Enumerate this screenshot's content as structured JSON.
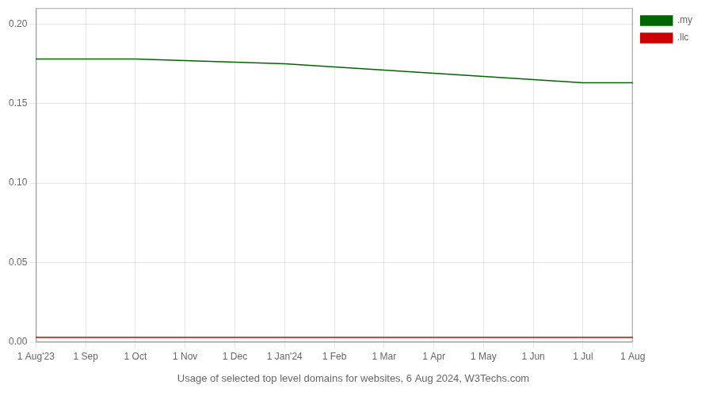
{
  "chart_data": {
    "type": "line",
    "title": "Usage of selected top level domains for websites, 6 Aug 2024, W3Techs.com",
    "categories": [
      "1 Aug'23",
      "1 Sep",
      "1 Oct",
      "1 Nov",
      "1 Dec",
      "1 Jan'24",
      "1 Feb",
      "1 Mar",
      "1 Apr",
      "1 May",
      "1 Jun",
      "1 Jul",
      "1 Aug"
    ],
    "series": [
      {
        "name": ".my",
        "color": "#006600",
        "values": [
          0.178,
          0.178,
          0.178,
          0.177,
          0.176,
          0.175,
          0.173,
          0.171,
          0.169,
          0.167,
          0.165,
          0.163,
          0.163
        ]
      },
      {
        "name": ".llc",
        "color": "#cc0000",
        "values": [
          0.003,
          0.003,
          0.003,
          0.003,
          0.003,
          0.003,
          0.003,
          0.003,
          0.003,
          0.003,
          0.003,
          0.003,
          0.003
        ]
      }
    ],
    "ylim": [
      0,
      0.21
    ],
    "yticks": [
      {
        "value": 0,
        "label": "0.00"
      },
      0.05,
      {
        "value": 0.1,
        "label": "0.10"
      },
      0.15,
      {
        "value": 0.2,
        "label": "0.20"
      }
    ],
    "grid": true,
    "legend": "right"
  }
}
